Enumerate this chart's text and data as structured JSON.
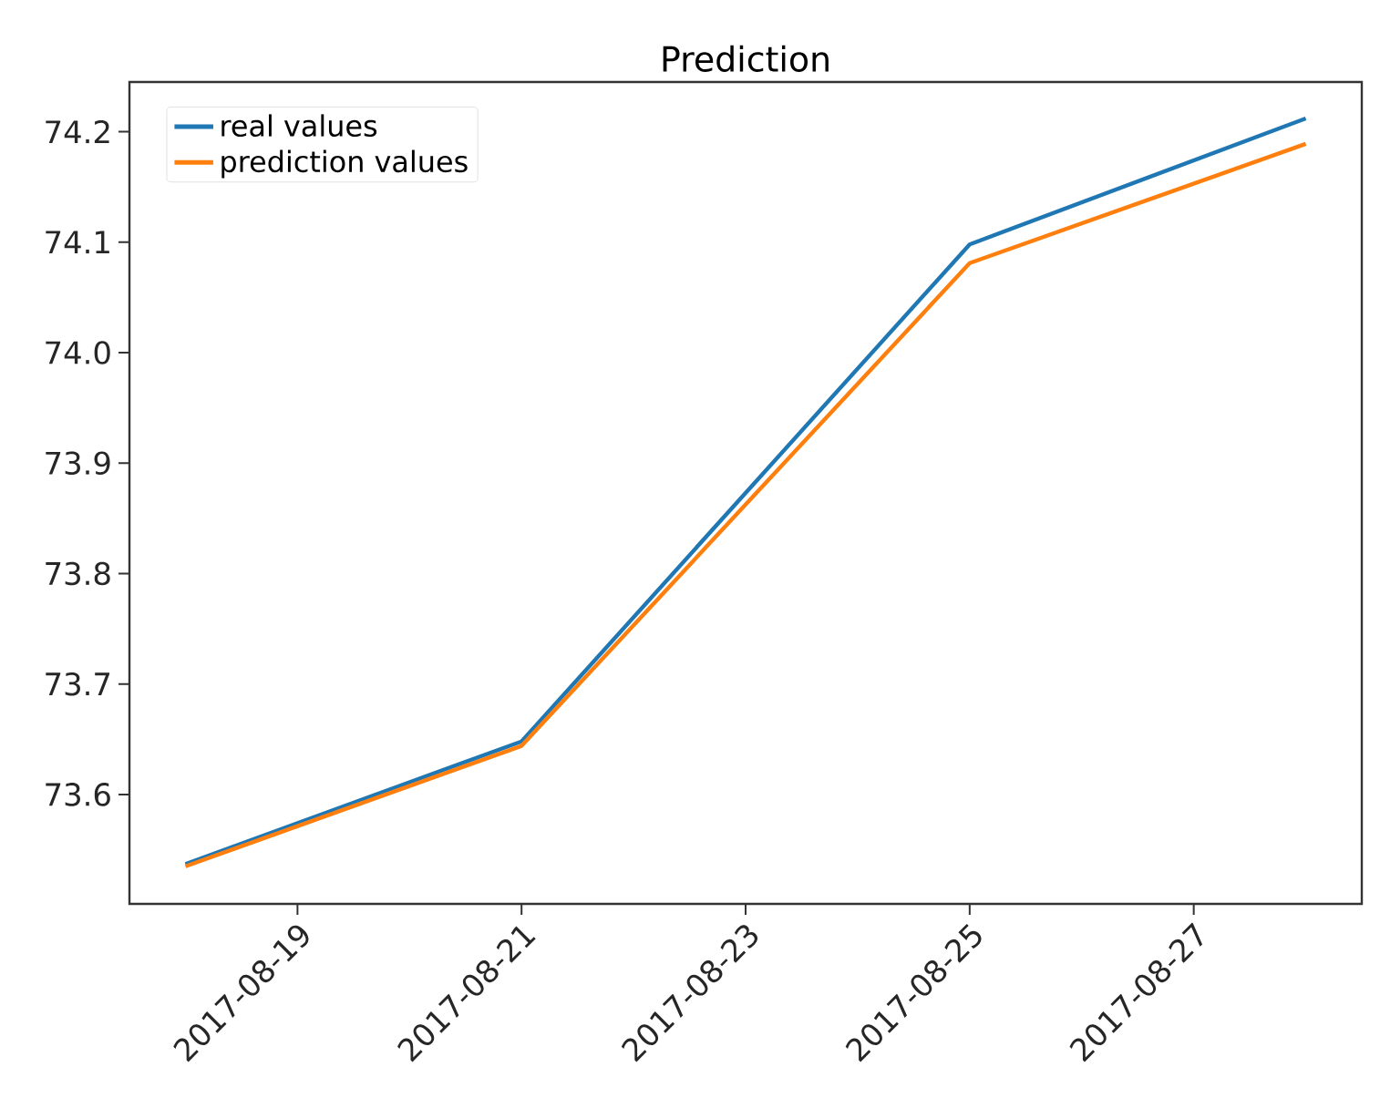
{
  "chart_data": {
    "type": "line",
    "title": "Prediction",
    "x": [
      "2017-08-18",
      "2017-08-21",
      "2017-08-25",
      "2017-08-28"
    ],
    "series": [
      {
        "name": "real values",
        "color": "#1f77b4",
        "values": [
          73.537,
          73.648,
          74.098,
          74.212
        ]
      },
      {
        "name": "prediction values",
        "color": "#ff7f0e",
        "values": [
          73.535,
          73.644,
          74.081,
          74.189
        ]
      }
    ],
    "xlim": [
      "2017-08-17T12:00",
      "2017-08-28T12:00"
    ],
    "xticks": [
      "2017-08-19",
      "2017-08-21",
      "2017-08-23",
      "2017-08-25",
      "2017-08-27"
    ],
    "ylim": [
      73.501,
      74.245
    ],
    "yticks": [
      73.6,
      73.7,
      73.8,
      73.9,
      {
        "value": 74.0,
        "label": "74.0"
      },
      74.1,
      74.2
    ],
    "legend": "top left",
    "grid": false,
    "marker": "none",
    "line_style": "solid"
  }
}
